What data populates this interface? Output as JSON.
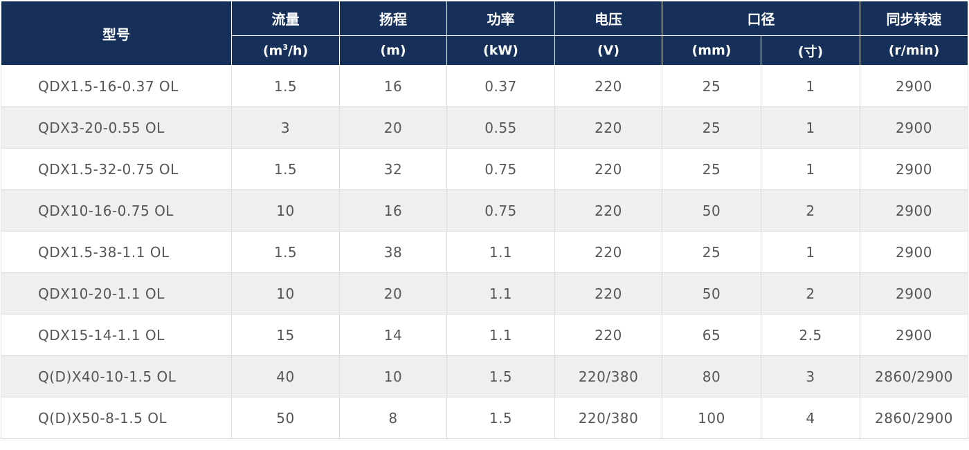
{
  "header": {
    "model": "型号",
    "flow": "流量",
    "flow_unit_pre": "(m",
    "flow_unit_sup": "3",
    "flow_unit_post": "/h)",
    "head": "扬程",
    "head_unit": "(m)",
    "power": "功率",
    "power_unit": "(kW)",
    "voltage": "电压",
    "voltage_unit": "(V)",
    "bore": "口径",
    "bore_unit_mm": "(mm)",
    "bore_unit_inch": "(寸)",
    "speed": "同步转速",
    "speed_unit": "(r/min)"
  },
  "rows": [
    {
      "model": "QDX1.5-16-0.37 OL",
      "flow": "1.5",
      "head": "16",
      "power": "0.37",
      "voltage": "220",
      "mm": "25",
      "inch": "1",
      "speed": "2900"
    },
    {
      "model": "QDX3-20-0.55 OL",
      "flow": "3",
      "head": "20",
      "power": "0.55",
      "voltage": "220",
      "mm": "25",
      "inch": "1",
      "speed": "2900"
    },
    {
      "model": "QDX1.5-32-0.75 OL",
      "flow": "1.5",
      "head": "32",
      "power": "0.75",
      "voltage": "220",
      "mm": "25",
      "inch": "1",
      "speed": "2900"
    },
    {
      "model": "QDX10-16-0.75 OL",
      "flow": "10",
      "head": "16",
      "power": "0.75",
      "voltage": "220",
      "mm": "50",
      "inch": "2",
      "speed": "2900"
    },
    {
      "model": "QDX1.5-38-1.1 OL",
      "flow": "1.5",
      "head": "38",
      "power": "1.1",
      "voltage": "220",
      "mm": "25",
      "inch": "1",
      "speed": "2900"
    },
    {
      "model": "QDX10-20-1.1 OL",
      "flow": "10",
      "head": "20",
      "power": "1.1",
      "voltage": "220",
      "mm": "50",
      "inch": "2",
      "speed": "2900"
    },
    {
      "model": "QDX15-14-1.1 OL",
      "flow": "15",
      "head": "14",
      "power": "1.1",
      "voltage": "220",
      "mm": "65",
      "inch": "2.5",
      "speed": "2900"
    },
    {
      "model": "Q(D)X40-10-1.5 OL",
      "flow": "40",
      "head": "10",
      "power": "1.5",
      "voltage": "220/380",
      "mm": "80",
      "inch": "3",
      "speed": "2860/2900"
    },
    {
      "model": "Q(D)X50-8-1.5  OL",
      "flow": "50",
      "head": "8",
      "power": "1.5",
      "voltage": "220/380",
      "mm": "100",
      "inch": "4",
      "speed": "2860/2900"
    }
  ]
}
